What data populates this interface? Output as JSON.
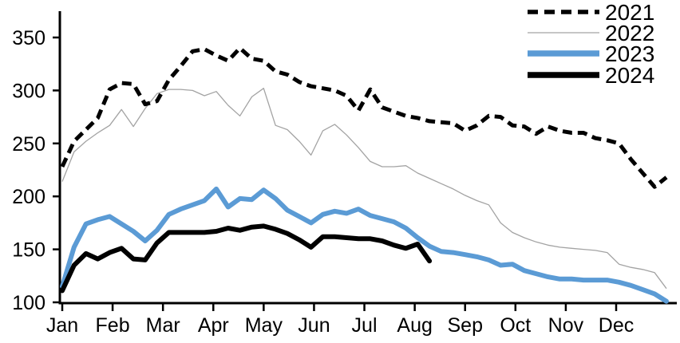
{
  "chart_data": {
    "type": "line",
    "title": "",
    "x_unit": "weekly points across one year",
    "x_tick_labels": [
      "Jan",
      "Feb",
      "Mar",
      "Apr",
      "May",
      "Jun",
      "Jul",
      "Aug",
      "Sep",
      "Oct",
      "Nov",
      "Dec"
    ],
    "y_ticks": [
      100,
      150,
      200,
      250,
      300,
      350
    ],
    "y_tick_labels": [
      "100",
      "150",
      "200",
      "250",
      "300",
      "350"
    ],
    "ylim": [
      100,
      375
    ],
    "grid": false,
    "legend_position": "top-right",
    "axis_color": "#000000",
    "series": [
      {
        "name": "2021",
        "style": "dashed",
        "color": "#000000",
        "width": 5,
        "values": [
          228,
          252,
          263,
          274,
          301,
          307,
          306,
          287,
          290,
          310,
          323,
          337,
          339,
          333,
          328,
          340,
          330,
          328,
          318,
          315,
          308,
          304,
          302,
          300,
          295,
          281,
          301,
          284,
          280,
          276,
          274,
          271,
          270,
          269,
          262,
          267,
          276,
          275,
          267,
          266,
          259,
          266,
          262,
          260,
          260,
          255,
          253,
          250,
          235,
          222,
          209,
          218
        ]
      },
      {
        "name": "2022",
        "style": "solid",
        "color": "#a3a3a3",
        "width": 1.3,
        "values": [
          214,
          242,
          252,
          260,
          267,
          282,
          266,
          283,
          297,
          301,
          301,
          300,
          295,
          299,
          286,
          276,
          294,
          302,
          267,
          263,
          252,
          239,
          262,
          268,
          258,
          246,
          233,
          228,
          228,
          229,
          222,
          217,
          212,
          207,
          201,
          196,
          192,
          175,
          166,
          161,
          157,
          154,
          152,
          151,
          150,
          149,
          147,
          136,
          133,
          131,
          128,
          113
        ]
      },
      {
        "name": "2023",
        "style": "solid",
        "color": "#5b9bd5",
        "width": 6,
        "values": [
          115,
          152,
          174,
          178,
          181,
          174,
          167,
          158,
          168,
          183,
          188,
          192,
          196,
          207,
          190,
          198,
          197,
          206,
          198,
          187,
          181,
          175,
          183,
          186,
          184,
          188,
          182,
          179,
          176,
          170,
          161,
          153,
          148,
          147,
          145,
          143,
          140,
          135,
          136,
          130,
          127,
          124,
          122,
          122,
          121,
          121,
          121,
          119,
          116,
          112,
          108,
          101
        ]
      },
      {
        "name": "2024",
        "style": "solid",
        "color": "#000000",
        "width": 6,
        "values": [
          111,
          135,
          146,
          141,
          147,
          151,
          141,
          140,
          156,
          166,
          166,
          166,
          166,
          167,
          170,
          168,
          171,
          172,
          169,
          165,
          159,
          152,
          162,
          162,
          161,
          160,
          160,
          158,
          154,
          151,
          155,
          139
        ]
      }
    ]
  },
  "legend": {
    "items": [
      "2021",
      "2022",
      "2023",
      "2024"
    ]
  }
}
